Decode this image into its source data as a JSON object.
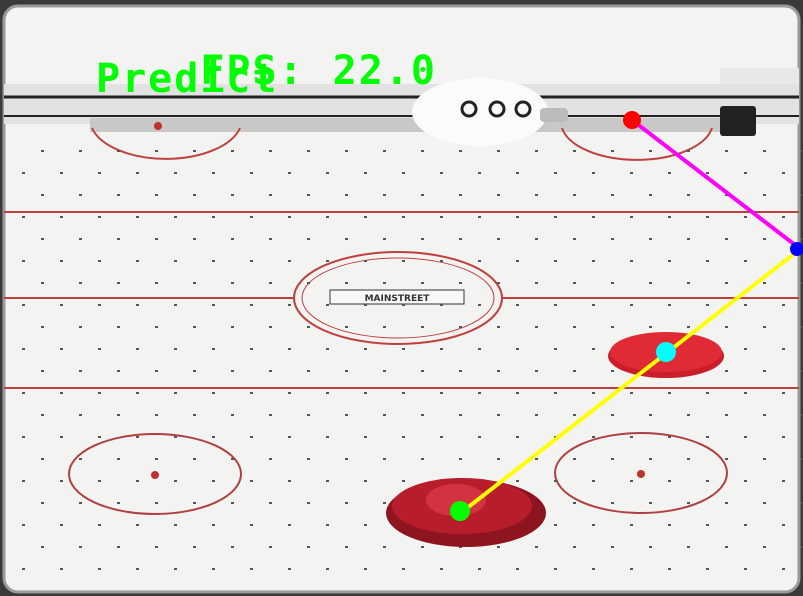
{
  "overlay": {
    "fps_label": "FPS:",
    "fps_value": "22.0",
    "mode": "Predict",
    "text_color": "#00ff00"
  },
  "table": {
    "logo_text": "MAINSTREET",
    "surface_color": "#f4f4f4",
    "line_color": "#c04040"
  },
  "tracking": {
    "puck_marker_color": "#00ffff",
    "mallet_marker_color": "#00ff00",
    "bounce_marker_color": "#0000ff",
    "goal_marker_color": "#ff0000",
    "bounce_path_color": "#ffff00",
    "goal_path_color": "#ff00ff"
  }
}
